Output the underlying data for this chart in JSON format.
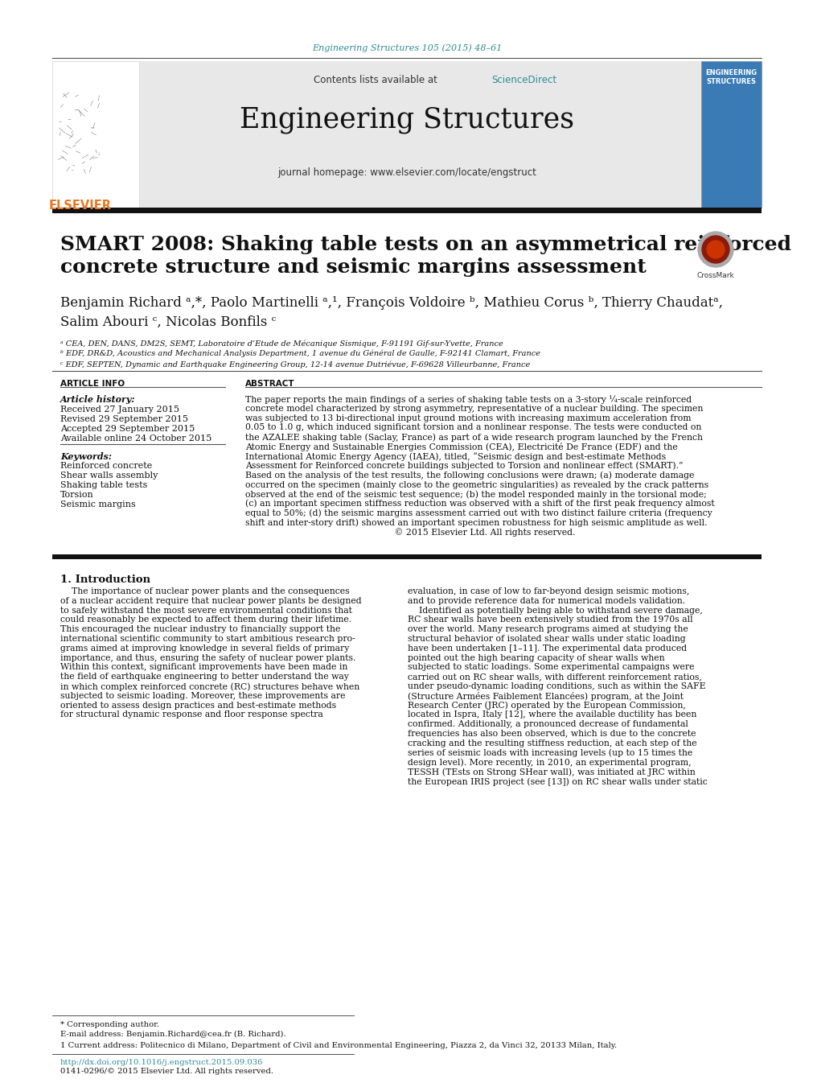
{
  "journal_ref": "Engineering Structures 105 (2015) 48–61",
  "journal_name": "Engineering Structures",
  "contents_text": "Contents lists available at ",
  "sciencedirect_text": "ScienceDirect",
  "homepage_text": "journal homepage: www.elsevier.com/locate/engstruct",
  "elsevier_text": "ELSEVIER",
  "title_line1": "SMART 2008: Shaking table tests on an asymmetrical reinforced",
  "title_line2": "concrete structure and seismic margins assessment",
  "author_line1": "Benjamin Richard ᵃ,*, Paolo Martinelli ᵃ,¹, François Voldoire ᵇ, Mathieu Corus ᵇ, Thierry Chaudatᵃ,",
  "author_line2": "Salim Abouri ᶜ, Nicolas Bonfils ᶜ",
  "affil_a": "ᵃ CEA, DEN, DANS, DM2S, SEMT, Laboratoire d’Etude de Mécanique Sismique, F-91191 Gif-sur-Yvette, France",
  "affil_b": "ᵇ EDF, DR&D, Acoustics and Mechanical Analysis Department, 1 avenue du Général de Gaulle, F-92141 Clamart, France",
  "affil_c": "ᶜ EDF, SEPTEN, Dynamic and Earthquake Engineering Group, 12-14 avenue Dutriévue, F-69628 Villeurbanne, France",
  "article_info_title": "ARTICLE INFO",
  "article_history_title": "Article history:",
  "received": "Received 27 January 2015",
  "revised": "Revised 29 September 2015",
  "accepted": "Accepted 29 September 2015",
  "available": "Available online 24 October 2015",
  "keywords_title": "Keywords:",
  "keywords": [
    "Reinforced concrete",
    "Shear walls assembly",
    "Shaking table tests",
    "Torsion",
    "Seismic margins"
  ],
  "abstract_title": "ABSTRACT",
  "abstract_lines": [
    "The paper reports the main findings of a series of shaking table tests on a 3-story ¼-scale reinforced",
    "concrete model characterized by strong asymmetry, representative of a nuclear building. The specimen",
    "was subjected to 13 bi-directional input ground motions with increasing maximum acceleration from",
    "0.05 to 1.0 g, which induced significant torsion and a nonlinear response. The tests were conducted on",
    "the AZALEE shaking table (Saclay, France) as part of a wide research program launched by the French",
    "Atomic Energy and Sustainable Energies Commission (CEA), Electricité De France (EDF) and the",
    "International Atomic Energy Agency (IAEA), titled, “Seismic design and best-estimate Methods",
    "Assessment for Reinforced concrete buildings subjected to Torsion and nonlinear effect (SMART).”",
    "Based on the analysis of the test results, the following conclusions were drawn; (a) moderate damage",
    "occurred on the specimen (mainly close to the geometric singularities) as revealed by the crack patterns",
    "observed at the end of the seismic test sequence; (b) the model responded mainly in the torsional mode;",
    "(c) an important specimen stiffness reduction was observed with a shift of the first peak frequency almost",
    "equal to 50%; (d) the seismic margins assessment carried out with two distinct failure criteria (frequency",
    "shift and inter-story drift) showed an important specimen robustness for high seismic amplitude as well.",
    "                                                     © 2015 Elsevier Ltd. All rights reserved."
  ],
  "section1_title": "1. Introduction",
  "col1_lines": [
    "    The importance of nuclear power plants and the consequences",
    "of a nuclear accident require that nuclear power plants be designed",
    "to safely withstand the most severe environmental conditions that",
    "could reasonably be expected to affect them during their lifetime.",
    "This encouraged the nuclear industry to financially support the",
    "international scientific community to start ambitious research pro-",
    "grams aimed at improving knowledge in several fields of primary",
    "importance, and thus, ensuring the safety of nuclear power plants.",
    "Within this context, significant improvements have been made in",
    "the field of earthquake engineering to better understand the way",
    "in which complex reinforced concrete (RC) structures behave when",
    "subjected to seismic loading. Moreover, these improvements are",
    "oriented to assess design practices and best-estimate methods",
    "for structural dynamic response and floor response spectra"
  ],
  "col2_lines": [
    "evaluation, in case of low to far-beyond design seismic motions,",
    "and to provide reference data for numerical models validation.",
    "    Identified as potentially being able to withstand severe damage,",
    "RC shear walls have been extensively studied from the 1970s all",
    "over the world. Many research programs aimed at studying the",
    "structural behavior of isolated shear walls under static loading",
    "have been undertaken [1–11]. The experimental data produced",
    "pointed out the high bearing capacity of shear walls when",
    "subjected to static loadings. Some experimental campaigns were",
    "carried out on RC shear walls, with different reinforcement ratios,",
    "under pseudo-dynamic loading conditions, such as within the SAFE",
    "(Structure Armées Faiblement Elancées) program, at the Joint",
    "Research Center (JRC) operated by the European Commission,",
    "located in Ispra, Italy [12], where the available ductility has been",
    "confirmed. Additionally, a pronounced decrease of fundamental",
    "frequencies has also been observed, which is due to the concrete",
    "cracking and the resulting stiffness reduction, at each step of the",
    "series of seismic loads with increasing levels (up to 15 times the",
    "design level). More recently, in 2010, an experimental program,",
    "TESSH (TEsts on Strong SHear wall), was initiated at JRC within",
    "the European IRIS project (see [13]) on RC shear walls under static"
  ],
  "footer_text1": "* Corresponding author.",
  "footer_email": "E-mail address: Benjamin.Richard@cea.fr (B. Richard).",
  "footer_note": "1 Current address: Politecnico di Milano, Department of Civil and Environmental Engineering, Piazza 2, da Vinci 32, 20133 Milan, Italy.",
  "footer_doi": "http://dx.doi.org/10.1016/j.engstruct.2015.09.036",
  "footer_issn": "0141-0296/© 2015 Elsevier Ltd. All rights reserved.",
  "color_teal": "#2E8B9A",
  "color_orange": "#E87722",
  "color_black": "#000000",
  "color_gray_header": "#E8E8E8",
  "color_dark_line": "#222222"
}
